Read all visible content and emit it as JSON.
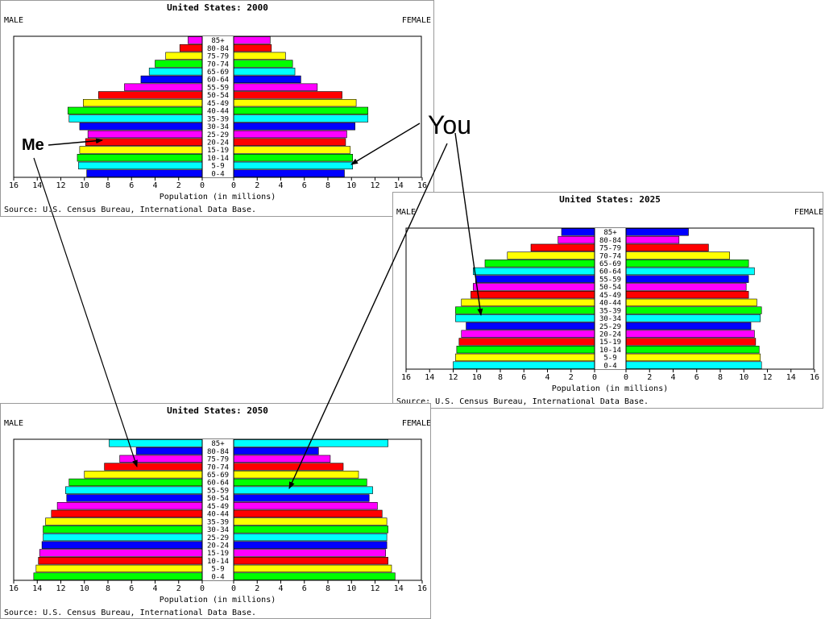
{
  "colors": {
    "cycle": [
      "#00ffff",
      "#ffff00",
      "#00ff00",
      "#ff0000",
      "#0000ff",
      "#ff00ff"
    ]
  },
  "annotations": {
    "me": "Me",
    "you": "You"
  },
  "chart_data": [
    {
      "type": "bar",
      "title": "United States: 2000",
      "left_label": "MALE",
      "right_label": "FEMALE",
      "xlabel": "Population (in millions)",
      "source": "Source: U.S. Census Bureau, International Data Base.",
      "xlim": [
        0,
        16
      ],
      "ticks": [
        "16",
        "14",
        "12",
        "10",
        "8",
        "6",
        "4",
        "2",
        "0",
        "0",
        "2",
        "4",
        "6",
        "8",
        "10",
        "12",
        "14",
        "16"
      ],
      "categories": [
        "0-4",
        "5-9",
        "10-14",
        "15-19",
        "20-24",
        "25-29",
        "30-34",
        "35-39",
        "40-44",
        "45-49",
        "50-54",
        "55-59",
        "60-64",
        "65-69",
        "70-74",
        "75-79",
        "80-84",
        "85+"
      ],
      "colors": [
        "#0000ff",
        "#00ffff",
        "#00ff00",
        "#ffff00",
        "#ff0000",
        "#ff00ff",
        "#0000ff",
        "#00ffff",
        "#00ff00",
        "#ffff00",
        "#ff0000",
        "#ff00ff",
        "#0000ff",
        "#00ffff",
        "#00ff00",
        "#ffff00",
        "#ff0000",
        "#ff00ff"
      ],
      "series": [
        {
          "name": "MALE",
          "values": [
            9.8,
            10.5,
            10.6,
            10.4,
            9.9,
            9.7,
            10.4,
            11.3,
            11.4,
            10.1,
            8.8,
            6.6,
            5.2,
            4.5,
            4.0,
            3.1,
            1.9,
            1.2
          ]
        },
        {
          "name": "FEMALE",
          "values": [
            9.4,
            10.1,
            10.1,
            9.9,
            9.5,
            9.6,
            10.3,
            11.4,
            11.4,
            10.4,
            9.2,
            7.1,
            5.7,
            5.2,
            5.0,
            4.4,
            3.2,
            3.1
          ]
        }
      ]
    },
    {
      "type": "bar",
      "title": "United States: 2025",
      "left_label": "MALE",
      "right_label": "FEMALE",
      "xlabel": "Population (in millions)",
      "source": "Source: U.S. Census Bureau, International Data Base.",
      "xlim": [
        0,
        16
      ],
      "ticks": [
        "16",
        "14",
        "12",
        "10",
        "8",
        "6",
        "4",
        "2",
        "0",
        "0",
        "2",
        "4",
        "6",
        "8",
        "10",
        "12",
        "14",
        "16"
      ],
      "categories": [
        "0-4",
        "5-9",
        "10-14",
        "15-19",
        "20-24",
        "25-29",
        "30-34",
        "35-39",
        "40-44",
        "45-49",
        "50-54",
        "55-59",
        "60-64",
        "65-69",
        "70-74",
        "75-79",
        "80-84",
        "85+"
      ],
      "colors": [
        "#00ffff",
        "#ffff00",
        "#00ff00",
        "#ff0000",
        "#ff00ff",
        "#0000ff",
        "#00ffff",
        "#00ff00",
        "#ffff00",
        "#ff0000",
        "#ff00ff",
        "#0000ff",
        "#00ffff",
        "#00ff00",
        "#ffff00",
        "#ff0000",
        "#ff00ff",
        "#0000ff"
      ],
      "series": [
        {
          "name": "MALE",
          "values": [
            12.0,
            11.8,
            11.7,
            11.5,
            11.3,
            10.9,
            11.8,
            11.8,
            11.3,
            10.5,
            10.3,
            10.1,
            10.3,
            9.3,
            7.4,
            5.4,
            3.1,
            2.8
          ]
        },
        {
          "name": "FEMALE",
          "values": [
            11.5,
            11.4,
            11.3,
            11.0,
            10.9,
            10.6,
            11.4,
            11.5,
            11.1,
            10.4,
            10.2,
            10.4,
            10.9,
            10.4,
            8.8,
            7.0,
            4.5,
            5.3
          ]
        }
      ]
    },
    {
      "type": "bar",
      "title": "United States: 2050",
      "left_label": "MALE",
      "right_label": "FEMALE",
      "xlabel": "Population (in millions)",
      "source": "Source: U.S. Census Bureau, International Data Base.",
      "xlim": [
        0,
        16
      ],
      "ticks": [
        "16",
        "14",
        "12",
        "10",
        "8",
        "6",
        "4",
        "2",
        "0",
        "0",
        "2",
        "4",
        "6",
        "8",
        "10",
        "12",
        "14",
        "16"
      ],
      "categories": [
        "0-4",
        "5-9",
        "10-14",
        "15-19",
        "20-24",
        "25-29",
        "30-34",
        "35-39",
        "40-44",
        "45-49",
        "50-54",
        "55-59",
        "60-64",
        "65-69",
        "70-74",
        "75-79",
        "80-84",
        "85+"
      ],
      "colors": [
        "#00ff00",
        "#ffff00",
        "#ff0000",
        "#ff00ff",
        "#0000ff",
        "#00ffff",
        "#00ff00",
        "#ffff00",
        "#ff0000",
        "#ff00ff",
        "#0000ff",
        "#00ffff",
        "#00ff00",
        "#ffff00",
        "#ff0000",
        "#ff00ff",
        "#0000ff",
        "#00ffff"
      ],
      "series": [
        {
          "name": "MALE",
          "values": [
            14.3,
            14.1,
            13.9,
            13.8,
            13.6,
            13.5,
            13.5,
            13.3,
            12.8,
            12.3,
            11.5,
            11.6,
            11.3,
            10.0,
            8.3,
            7.0,
            5.6,
            7.9
          ]
        },
        {
          "name": "FEMALE",
          "values": [
            13.7,
            13.4,
            13.1,
            12.9,
            13.0,
            13.0,
            13.1,
            13.0,
            12.6,
            12.2,
            11.5,
            11.8,
            11.3,
            10.6,
            9.3,
            8.2,
            7.2,
            13.1
          ]
        }
      ]
    }
  ]
}
